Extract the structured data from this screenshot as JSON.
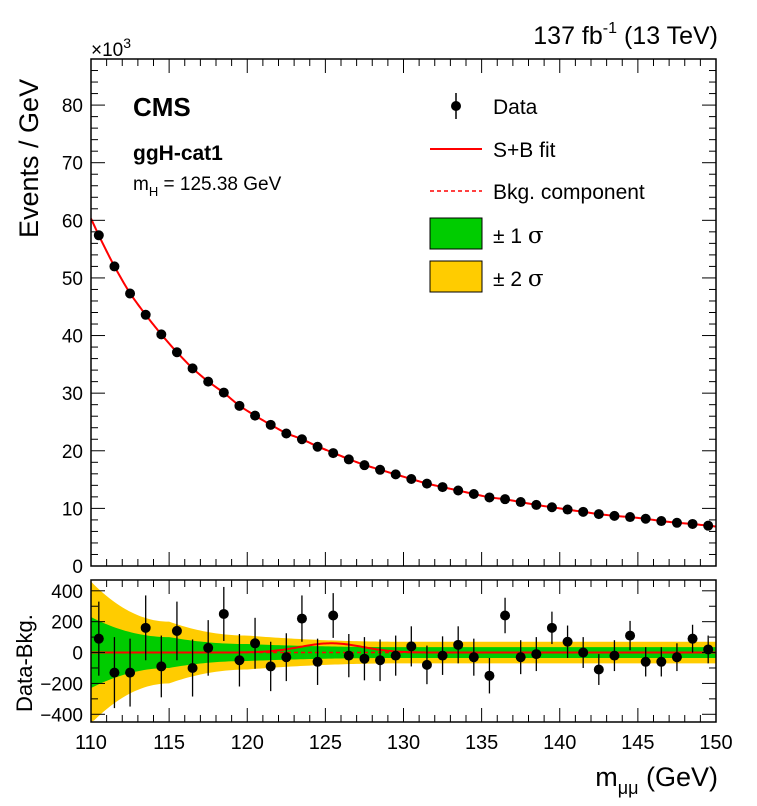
{
  "header": {
    "lumi_value": "137 fb",
    "lumi_exp": "-1",
    "energy": "(13 TeV)"
  },
  "annotations": {
    "experiment": "CMS",
    "category": "ggH-cat1",
    "mass_label": "m",
    "mass_sub": "H",
    "mass_value": "= 125.38 GeV",
    "exponent_base": "×10",
    "exponent_power": "3"
  },
  "legend": {
    "data": "Data",
    "fit": "S+B fit",
    "bkg": "Bkg. component",
    "one_sigma_pm": "± 1",
    "two_sigma_pm": "± 2",
    "sigma": "σ"
  },
  "colors": {
    "fit": "#ff0000",
    "band_1sigma": "#00cc00",
    "band_2sigma": "#ffcc00",
    "points": "#000000"
  },
  "chart_data": [
    {
      "type": "scatter",
      "panel": "main",
      "ylabel": "Events / GeV",
      "xlim": [
        110,
        150
      ],
      "ylim": [
        0,
        88
      ],
      "yticks": [
        0,
        10,
        20,
        30,
        40,
        50,
        60,
        70,
        80
      ],
      "y_multiplier": "×10^3",
      "x": [
        110.5,
        111.5,
        112.5,
        113.5,
        114.5,
        115.5,
        116.5,
        117.5,
        118.5,
        119.5,
        120.5,
        121.5,
        122.5,
        123.5,
        124.5,
        125.5,
        126.5,
        127.5,
        128.5,
        129.5,
        130.5,
        131.5,
        132.5,
        133.5,
        134.5,
        135.5,
        136.5,
        137.5,
        138.5,
        139.5,
        140.5,
        141.5,
        142.5,
        143.5,
        144.5,
        145.5,
        146.5,
        147.5,
        148.5,
        149.5
      ],
      "series": [
        {
          "name": "Data",
          "values": [
            57.4,
            52.0,
            47.3,
            43.6,
            40.2,
            37.1,
            34.3,
            32.0,
            30.1,
            27.8,
            26.1,
            24.5,
            23.0,
            22.0,
            20.7,
            19.6,
            18.5,
            17.5,
            16.7,
            15.9,
            15.1,
            14.3,
            13.7,
            13.1,
            12.5,
            11.9,
            11.6,
            11.1,
            10.6,
            10.2,
            9.8,
            9.4,
            9.0,
            8.7,
            8.5,
            8.2,
            7.8,
            7.5,
            7.3,
            7.0
          ]
        },
        {
          "name": "S+B fit",
          "curve": "fit"
        },
        {
          "name": "Bkg. component",
          "curve": "bkg"
        }
      ],
      "legend_position": "top-right"
    },
    {
      "type": "scatter",
      "panel": "ratio",
      "xlabel": "m_μμ (GeV)",
      "ylabel": "Data-Bkg.",
      "xlim": [
        110,
        150
      ],
      "ylim": [
        -450,
        470
      ],
      "yticks": [
        -400,
        -200,
        0,
        200,
        400
      ],
      "xticks": [
        110,
        115,
        120,
        125,
        130,
        135,
        140,
        145,
        150
      ],
      "x": [
        110.5,
        111.5,
        112.5,
        113.5,
        114.5,
        115.5,
        116.5,
        117.5,
        118.5,
        119.5,
        120.5,
        121.5,
        122.5,
        123.5,
        124.5,
        125.5,
        126.5,
        127.5,
        128.5,
        129.5,
        130.5,
        131.5,
        132.5,
        133.5,
        134.5,
        135.5,
        136.5,
        137.5,
        138.5,
        139.5,
        140.5,
        141.5,
        142.5,
        143.5,
        144.5,
        145.5,
        146.5,
        147.5,
        148.5,
        149.5
      ],
      "series": [
        {
          "name": "Data",
          "values": [
            90,
            -130,
            -130,
            160,
            -90,
            140,
            -100,
            30,
            250,
            -50,
            60,
            -90,
            -30,
            220,
            -60,
            240,
            -20,
            -40,
            -50,
            -20,
            40,
            -80,
            -20,
            50,
            -30,
            -150,
            240,
            -30,
            -10,
            160,
            70,
            0,
            -110,
            -20,
            110,
            -60,
            -60,
            -30,
            90,
            20
          ],
          "errors": [
            240,
            230,
            220,
            210,
            200,
            190,
            185,
            180,
            175,
            170,
            165,
            160,
            155,
            150,
            150,
            145,
            140,
            140,
            135,
            130,
            130,
            125,
            125,
            120,
            120,
            115,
            115,
            110,
            110,
            105,
            105,
            100,
            100,
            100,
            95,
            95,
            95,
            90,
            90,
            90
          ]
        }
      ],
      "signal_peak": {
        "x": 125.38,
        "amplitude": 60,
        "width": 2.0
      },
      "band_1sigma_halfwidth": {
        "110": 230,
        "115": 100,
        "120": 55,
        "130": 35,
        "150": 35
      },
      "band_2sigma_halfwidth": {
        "110": 460,
        "115": 200,
        "120": 110,
        "130": 70,
        "150": 70
      }
    }
  ]
}
